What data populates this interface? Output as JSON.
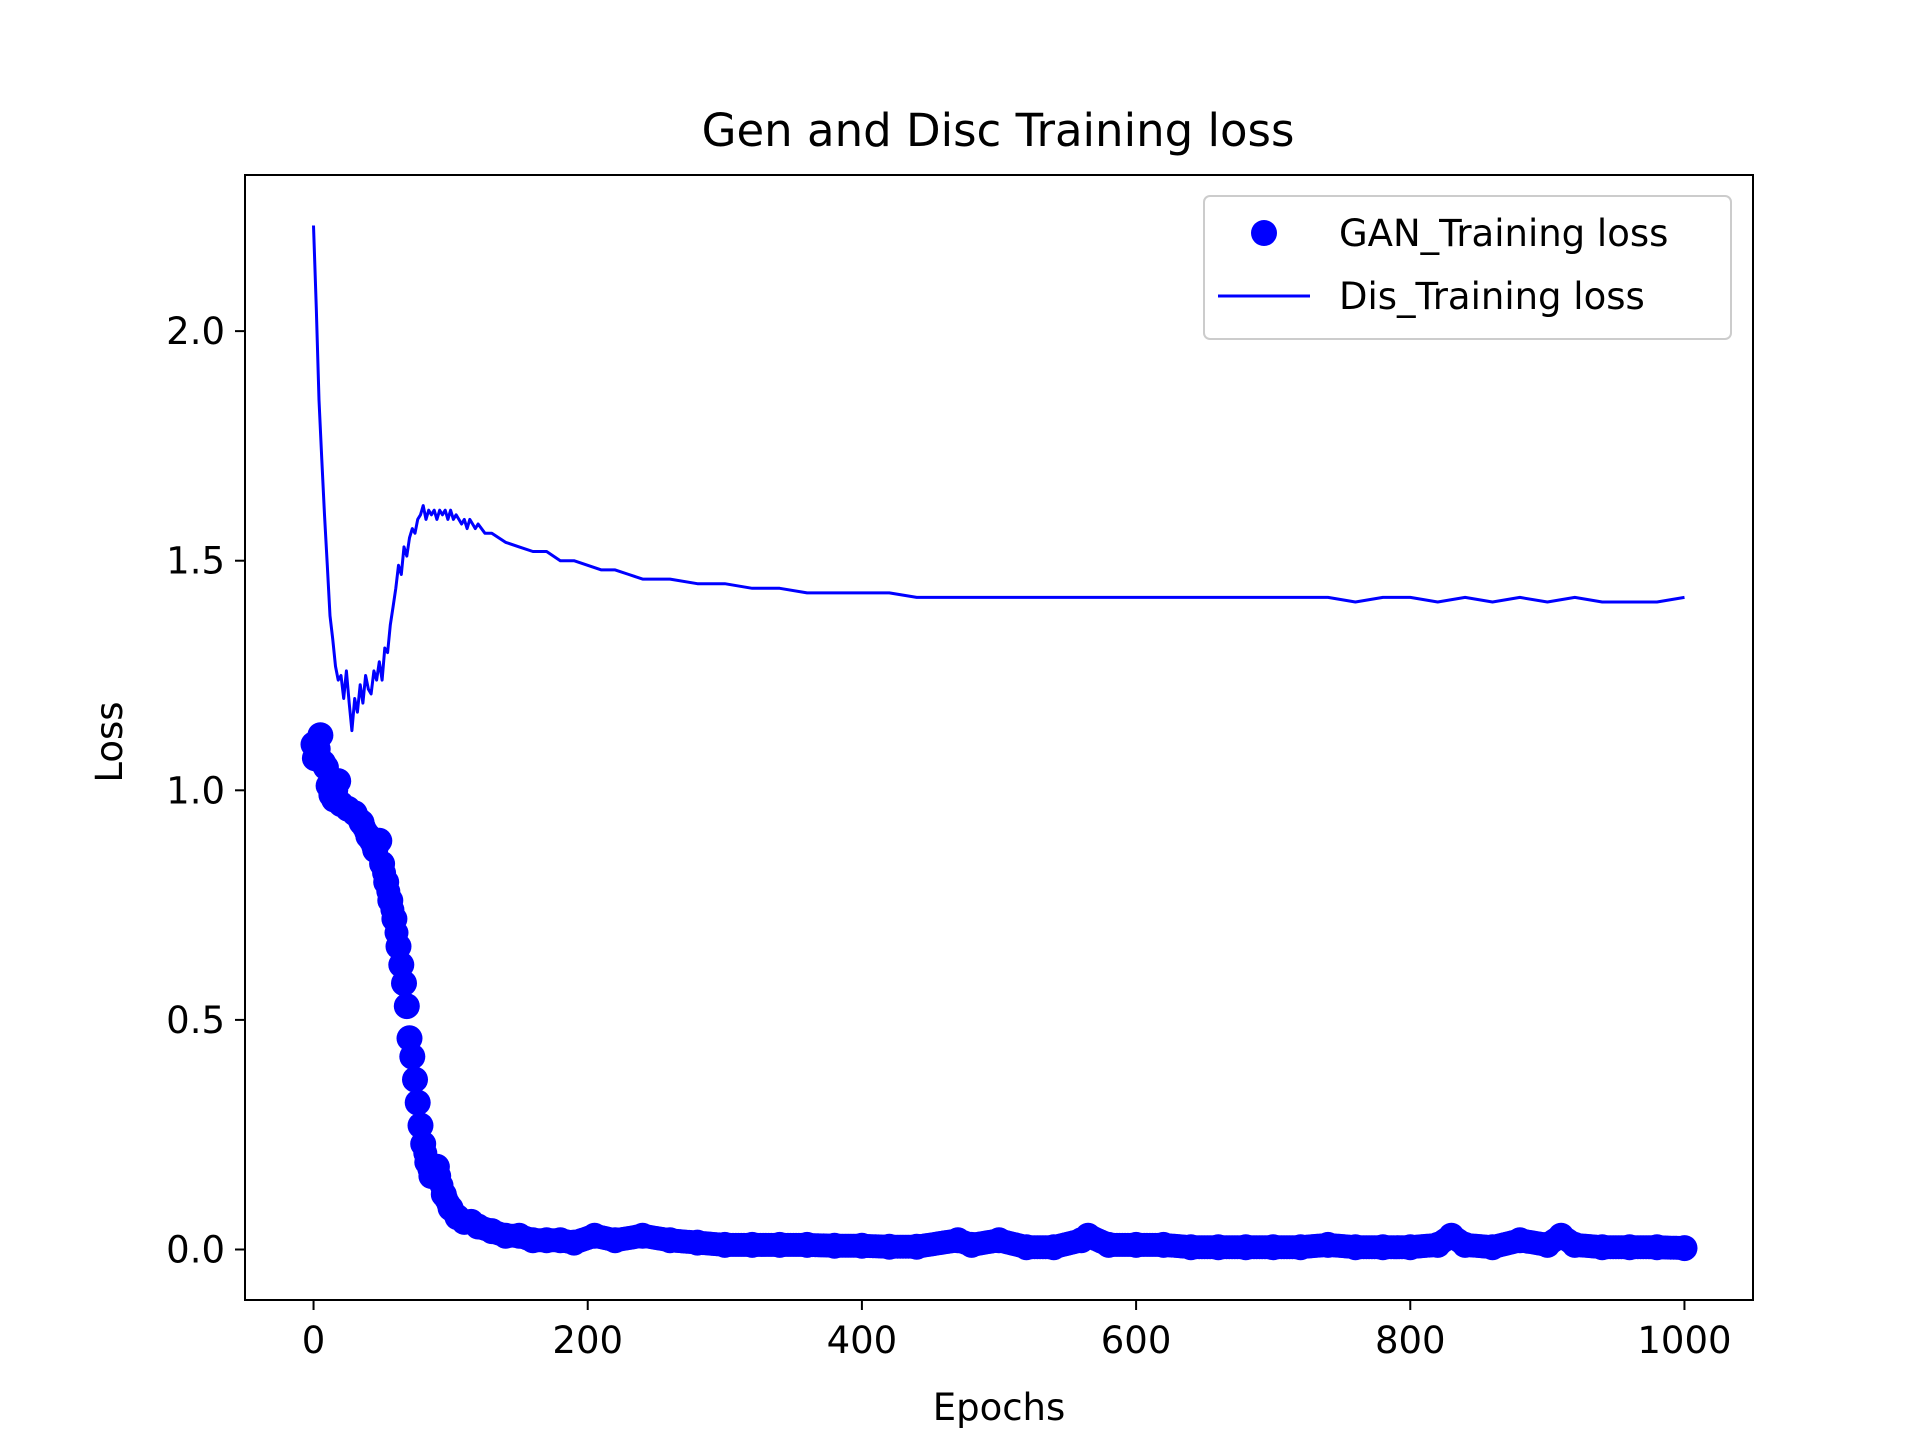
{
  "chart_data": {
    "type": "line",
    "title": "Gen and Disc Training loss",
    "xlabel": "Epochs",
    "ylabel": "Loss",
    "xlim": [
      -50,
      1050
    ],
    "ylim": [
      -0.11,
      2.34
    ],
    "x_ticks": [
      0,
      200,
      400,
      600,
      800,
      1000
    ],
    "y_ticks": [
      0.0,
      0.5,
      1.0,
      1.5,
      2.0
    ],
    "x_tick_labels": [
      "0",
      "200",
      "400",
      "600",
      "800",
      "1000"
    ],
    "y_tick_labels": [
      "0.0",
      "0.5",
      "1.0",
      "1.5",
      "2.0"
    ],
    "grid": false,
    "legend_position": "top-right",
    "series": [
      {
        "name": "GAN_Training loss",
        "style": "markers",
        "color": "#0000ff",
        "points": [
          [
            0,
            1.1
          ],
          [
            1,
            1.07
          ],
          [
            3,
            1.09
          ],
          [
            5,
            1.12
          ],
          [
            7,
            1.06
          ],
          [
            9,
            1.05
          ],
          [
            11,
            1.01
          ],
          [
            13,
            0.99
          ],
          [
            15,
            0.98
          ],
          [
            18,
            1.02
          ],
          [
            20,
            0.97
          ],
          [
            25,
            0.96
          ],
          [
            30,
            0.95
          ],
          [
            35,
            0.93
          ],
          [
            40,
            0.9
          ],
          [
            45,
            0.87
          ],
          [
            48,
            0.89
          ],
          [
            50,
            0.84
          ],
          [
            53,
            0.8
          ],
          [
            56,
            0.76
          ],
          [
            59,
            0.72
          ],
          [
            62,
            0.66
          ],
          [
            64,
            0.62
          ],
          [
            66,
            0.58
          ],
          [
            68,
            0.53
          ],
          [
            70,
            0.46
          ],
          [
            72,
            0.42
          ],
          [
            74,
            0.37
          ],
          [
            76,
            0.32
          ],
          [
            78,
            0.27
          ],
          [
            80,
            0.23
          ],
          [
            83,
            0.19
          ],
          [
            86,
            0.16
          ],
          [
            90,
            0.18
          ],
          [
            95,
            0.12
          ],
          [
            100,
            0.09
          ],
          [
            105,
            0.07
          ],
          [
            110,
            0.06
          ],
          [
            115,
            0.06
          ],
          [
            120,
            0.05
          ],
          [
            130,
            0.04
          ],
          [
            140,
            0.03
          ],
          [
            150,
            0.03
          ],
          [
            160,
            0.02
          ],
          [
            170,
            0.02
          ],
          [
            180,
            0.02
          ],
          [
            190,
            0.015
          ],
          [
            205,
            0.03
          ],
          [
            220,
            0.02
          ],
          [
            240,
            0.03
          ],
          [
            260,
            0.02
          ],
          [
            280,
            0.015
          ],
          [
            300,
            0.01
          ],
          [
            320,
            0.01
          ],
          [
            340,
            0.01
          ],
          [
            360,
            0.01
          ],
          [
            380,
            0.008
          ],
          [
            400,
            0.008
          ],
          [
            420,
            0.006
          ],
          [
            440,
            0.006
          ],
          [
            470,
            0.02
          ],
          [
            480,
            0.01
          ],
          [
            500,
            0.02
          ],
          [
            520,
            0.005
          ],
          [
            540,
            0.005
          ],
          [
            560,
            0.02
          ],
          [
            565,
            0.03
          ],
          [
            580,
            0.01
          ],
          [
            600,
            0.01
          ],
          [
            620,
            0.01
          ],
          [
            640,
            0.005
          ],
          [
            660,
            0.005
          ],
          [
            680,
            0.005
          ],
          [
            700,
            0.005
          ],
          [
            720,
            0.005
          ],
          [
            740,
            0.01
          ],
          [
            760,
            0.005
          ],
          [
            780,
            0.005
          ],
          [
            800,
            0.005
          ],
          [
            820,
            0.01
          ],
          [
            830,
            0.03
          ],
          [
            840,
            0.01
          ],
          [
            860,
            0.005
          ],
          [
            880,
            0.02
          ],
          [
            900,
            0.01
          ],
          [
            910,
            0.03
          ],
          [
            920,
            0.01
          ],
          [
            940,
            0.005
          ],
          [
            960,
            0.005
          ],
          [
            980,
            0.005
          ],
          [
            1000,
            0.003
          ]
        ]
      },
      {
        "name": "Dis_Training loss",
        "style": "line",
        "color": "#0000ff",
        "points": [
          [
            0,
            2.23
          ],
          [
            2,
            2.05
          ],
          [
            4,
            1.85
          ],
          [
            6,
            1.72
          ],
          [
            8,
            1.6
          ],
          [
            10,
            1.49
          ],
          [
            12,
            1.38
          ],
          [
            14,
            1.33
          ],
          [
            16,
            1.27
          ],
          [
            18,
            1.24
          ],
          [
            20,
            1.25
          ],
          [
            22,
            1.2
          ],
          [
            24,
            1.26
          ],
          [
            26,
            1.19
          ],
          [
            28,
            1.13
          ],
          [
            30,
            1.2
          ],
          [
            32,
            1.17
          ],
          [
            34,
            1.23
          ],
          [
            36,
            1.19
          ],
          [
            38,
            1.25
          ],
          [
            40,
            1.22
          ],
          [
            42,
            1.21
          ],
          [
            44,
            1.26
          ],
          [
            46,
            1.24
          ],
          [
            48,
            1.28
          ],
          [
            50,
            1.24
          ],
          [
            52,
            1.31
          ],
          [
            54,
            1.3
          ],
          [
            56,
            1.36
          ],
          [
            58,
            1.4
          ],
          [
            60,
            1.44
          ],
          [
            62,
            1.49
          ],
          [
            64,
            1.47
          ],
          [
            66,
            1.53
          ],
          [
            68,
            1.51
          ],
          [
            70,
            1.55
          ],
          [
            72,
            1.57
          ],
          [
            74,
            1.56
          ],
          [
            76,
            1.59
          ],
          [
            78,
            1.6
          ],
          [
            80,
            1.62
          ],
          [
            82,
            1.59
          ],
          [
            84,
            1.61
          ],
          [
            86,
            1.6
          ],
          [
            88,
            1.61
          ],
          [
            90,
            1.59
          ],
          [
            92,
            1.61
          ],
          [
            94,
            1.6
          ],
          [
            96,
            1.61
          ],
          [
            98,
            1.59
          ],
          [
            100,
            1.61
          ],
          [
            102,
            1.59
          ],
          [
            104,
            1.6
          ],
          [
            106,
            1.59
          ],
          [
            108,
            1.58
          ],
          [
            110,
            1.59
          ],
          [
            112,
            1.57
          ],
          [
            114,
            1.59
          ],
          [
            116,
            1.58
          ],
          [
            118,
            1.57
          ],
          [
            120,
            1.58
          ],
          [
            125,
            1.56
          ],
          [
            130,
            1.56
          ],
          [
            140,
            1.54
          ],
          [
            150,
            1.53
          ],
          [
            160,
            1.52
          ],
          [
            170,
            1.52
          ],
          [
            180,
            1.5
          ],
          [
            190,
            1.5
          ],
          [
            200,
            1.49
          ],
          [
            210,
            1.48
          ],
          [
            220,
            1.48
          ],
          [
            230,
            1.47
          ],
          [
            240,
            1.46
          ],
          [
            250,
            1.46
          ],
          [
            260,
            1.46
          ],
          [
            280,
            1.45
          ],
          [
            300,
            1.45
          ],
          [
            320,
            1.44
          ],
          [
            340,
            1.44
          ],
          [
            360,
            1.43
          ],
          [
            380,
            1.43
          ],
          [
            400,
            1.43
          ],
          [
            420,
            1.43
          ],
          [
            440,
            1.42
          ],
          [
            460,
            1.42
          ],
          [
            480,
            1.42
          ],
          [
            500,
            1.42
          ],
          [
            520,
            1.42
          ],
          [
            540,
            1.42
          ],
          [
            560,
            1.42
          ],
          [
            580,
            1.42
          ],
          [
            600,
            1.42
          ],
          [
            620,
            1.42
          ],
          [
            640,
            1.42
          ],
          [
            660,
            1.42
          ],
          [
            680,
            1.42
          ],
          [
            700,
            1.42
          ],
          [
            720,
            1.42
          ],
          [
            740,
            1.42
          ],
          [
            760,
            1.41
          ],
          [
            780,
            1.42
          ],
          [
            800,
            1.42
          ],
          [
            820,
            1.41
          ],
          [
            840,
            1.42
          ],
          [
            860,
            1.41
          ],
          [
            880,
            1.42
          ],
          [
            900,
            1.41
          ],
          [
            920,
            1.42
          ],
          [
            940,
            1.41
          ],
          [
            960,
            1.41
          ],
          [
            980,
            1.41
          ],
          [
            1000,
            1.42
          ]
        ]
      }
    ]
  }
}
